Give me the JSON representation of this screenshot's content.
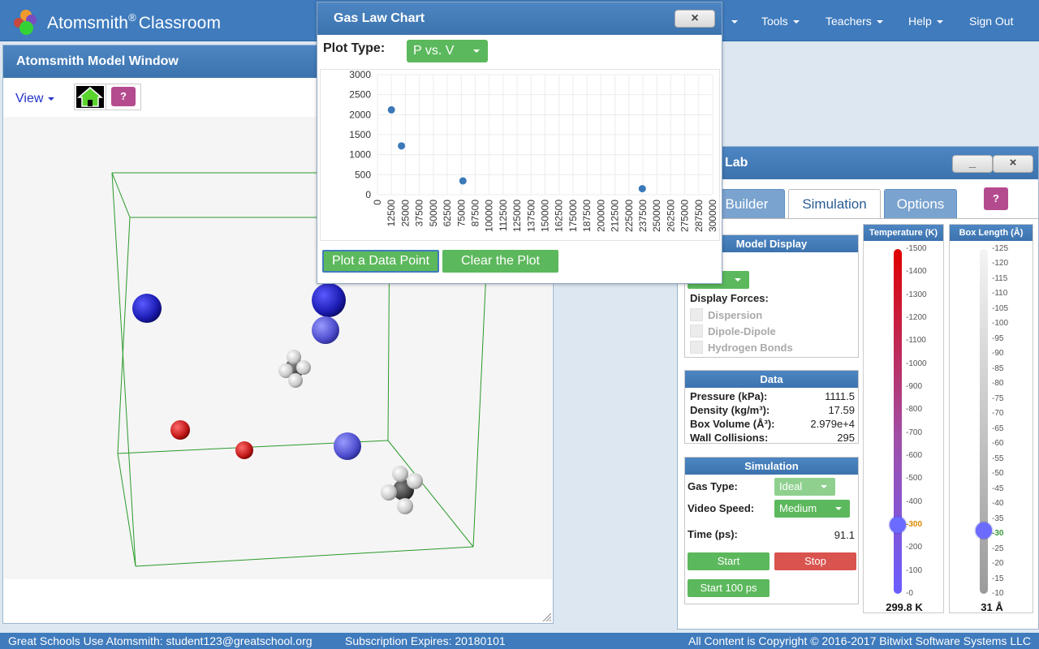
{
  "navbar": {
    "brand": "Atomsmith",
    "brand_mark": "®",
    "brand_suffix": "Classroom",
    "items": [
      {
        "label": "Tools"
      },
      {
        "label": "Teachers"
      },
      {
        "label": "Help"
      },
      {
        "label": "Sign Out"
      }
    ]
  },
  "model_window": {
    "title": "Atomsmith Model Window",
    "view_menu": "View",
    "help_label": "?"
  },
  "chart_dialog": {
    "title": "Gas Law Chart",
    "close_label": "×",
    "plot_type_label": "Plot Type:",
    "plot_type_value": "P vs. V",
    "plot_button": "Plot a Data Point",
    "clear_button": "Clear the Plot"
  },
  "chart_data": {
    "type": "scatter",
    "title": "",
    "xlabel": "",
    "ylabel": "",
    "xlim": [
      0,
      300000
    ],
    "ylim": [
      0,
      3000
    ],
    "x_ticks": [
      "0",
      "12500",
      "25000",
      "37500",
      "50000",
      "62500",
      "75000",
      "87500",
      "100000",
      "112500",
      "125000",
      "137500",
      "150000",
      "162500",
      "175000",
      "187500",
      "200000",
      "212500",
      "225000",
      "237500",
      "250000",
      "262500",
      "275000",
      "287500",
      "300000"
    ],
    "y_ticks": [
      "0",
      "500",
      "1000",
      "1500",
      "2000",
      "2500",
      "3000"
    ],
    "grid": true,
    "points": [
      {
        "x": 12500,
        "y": 2120
      },
      {
        "x": 21500,
        "y": 1220
      },
      {
        "x": 76500,
        "y": 345
      },
      {
        "x": 237000,
        "y": 150
      }
    ],
    "color": "#3a78b8"
  },
  "gas_lab": {
    "title": "Lab",
    "minimize_label": "_",
    "close_label": "×",
    "tabs": [
      {
        "label": "Builder",
        "active": false
      },
      {
        "label": "Simulation",
        "active": true
      },
      {
        "label": "Options",
        "active": false
      }
    ],
    "help_label": "?",
    "model_display": {
      "title": "Model Display",
      "colon_label": ":",
      "display_forces_label": "Display Forces:",
      "forces": [
        "Dispersion",
        "Dipole-Dipole",
        "Hydrogen Bonds"
      ]
    },
    "data": {
      "title": "Data",
      "rows": [
        {
          "label": "Pressure (kPa):",
          "value": "1111.5"
        },
        {
          "label": "Density (kg/m³):",
          "value": "17.59"
        },
        {
          "label": "Box Volume (Å³):",
          "value": "2.979e+4"
        },
        {
          "label": "Wall Collisions:",
          "value": "295"
        }
      ]
    },
    "simulation": {
      "title": "Simulation",
      "gas_type_label": "Gas Type:",
      "gas_type_value": "Ideal",
      "video_speed_label": "Video Speed:",
      "video_speed_value": "Medium",
      "time_label": "Time (ps):",
      "time_value": "91.1",
      "start_label": "Start",
      "stop_label": "Stop",
      "start100_label": "Start 100 ps"
    },
    "temperature": {
      "title": "Temperature (K)",
      "ticks": [
        "-1500",
        "-1400",
        "-1300",
        "-1200",
        "-1100",
        "-1000",
        "-900",
        "-800",
        "-700",
        "-600",
        "-500",
        "-400",
        "-300",
        "-200",
        "-100",
        "-0"
      ],
      "tick_values": [
        1500,
        1400,
        1300,
        1200,
        1100,
        1000,
        900,
        800,
        700,
        600,
        500,
        400,
        300,
        200,
        100,
        0
      ],
      "max": 1500,
      "value": 299.8,
      "readout": "299.8 K"
    },
    "box_length": {
      "title": "Box Length (Å)",
      "ticks": [
        "-125",
        "-120",
        "-115",
        "-110",
        "-105",
        "-100",
        "-95",
        "-90",
        "-85",
        "-80",
        "-75",
        "-70",
        "-65",
        "-60",
        "-55",
        "-50",
        "-45",
        "-40",
        "-35",
        "-30",
        "-25",
        "-20",
        "-15",
        "-10"
      ],
      "tick_values": [
        125,
        120,
        115,
        110,
        105,
        100,
        95,
        90,
        85,
        80,
        75,
        70,
        65,
        60,
        55,
        50,
        45,
        40,
        35,
        30,
        25,
        20,
        15,
        10
      ],
      "min": 10,
      "max": 125,
      "value": 31,
      "readout": "31 Å"
    }
  },
  "footer": {
    "school": "Great Schools Use Atomsmith: student123@greatschool.org",
    "subscription": "Subscription Expires: 20180101",
    "copyright": "All Content is Copyright © 2016-2017 Bitwixt Software Systems LLC"
  },
  "colors": {
    "brand_blue": "#3f7bbd",
    "green": "#5cb85c",
    "red": "#d9534f",
    "help_magenta": "#b54b8f"
  }
}
